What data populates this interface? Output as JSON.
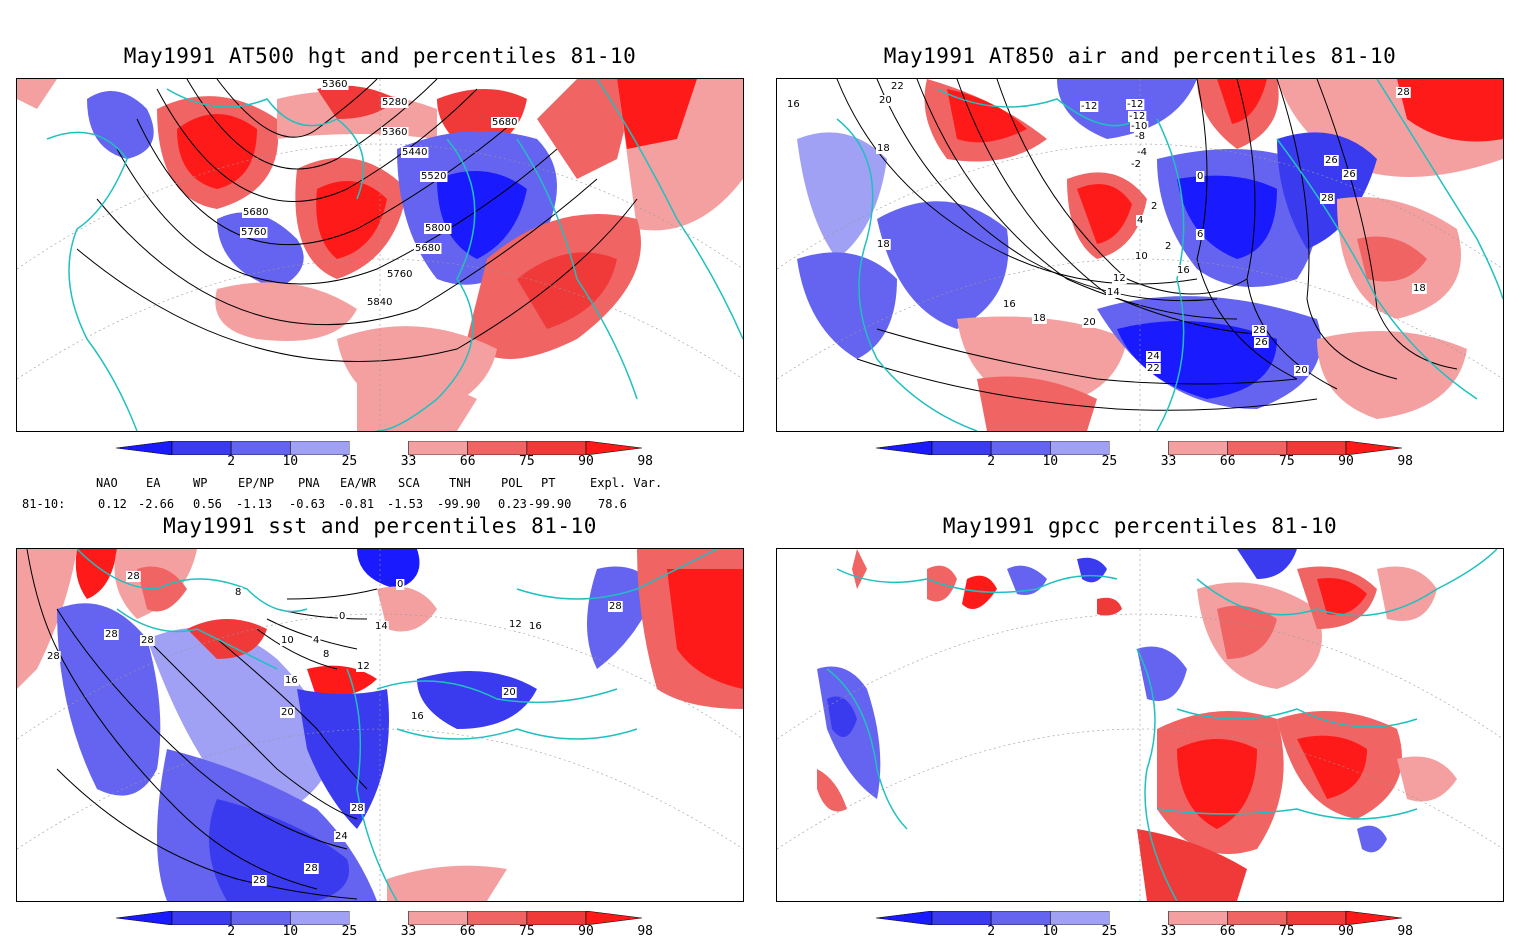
{
  "panels": [
    {
      "title": "May1991 AT500 hgt and percentiles 81-10",
      "field": "hgt500",
      "contour_labels": [
        "5360",
        "5280",
        "5680",
        "5360",
        "5440",
        "5520",
        "5680",
        "5760",
        "5800",
        "5680",
        "5760",
        "5840"
      ]
    },
    {
      "title": "May1991 AT850 air and percentiles 81-10",
      "field": "air850",
      "contour_labels": [
        "22",
        "20",
        "16",
        "-12",
        "-12",
        "-12",
        "-10",
        "-8",
        "-4",
        "-2",
        "0",
        "18",
        "26",
        "26",
        "28",
        "28",
        "2",
        "4",
        "6",
        "2",
        "10",
        "16",
        "12",
        "14",
        "16",
        "18",
        "20",
        "18",
        "28",
        "26",
        "24",
        "22",
        "20",
        "18"
      ]
    },
    {
      "title": "May1991 sst and percentiles 81-10",
      "field": "sst",
      "contour_labels": [
        "28",
        "28",
        "28",
        "28",
        "28",
        "8",
        "0",
        "0",
        "14",
        "10",
        "4",
        "8",
        "12",
        "16",
        "20",
        "12",
        "16",
        "20",
        "16",
        "24",
        "28",
        "28",
        "28"
      ]
    },
    {
      "title": "May1991 gpcc percentiles 81-10",
      "field": "gpcc",
      "contour_labels": []
    }
  ],
  "colorbar": {
    "labels": [
      "2",
      "10",
      "25",
      "33",
      "66",
      "75",
      "90",
      "98"
    ],
    "colors": [
      "#1a1aff",
      "#3a3aef",
      "#6464f0",
      "#a0a0f5",
      "#ffffff",
      "#f5a0a0",
      "#f06464",
      "#f03a3a",
      "#ff1a1a"
    ]
  },
  "teleconnections": {
    "headers": [
      "NAO",
      "EA",
      "WP",
      "EP/NP",
      "PNA",
      "EA/WR",
      "SCA",
      "TNH",
      "POL",
      "PT",
      "Expl. Var."
    ],
    "row_label": "81-10:",
    "values": [
      "0.12",
      "-2.66",
      "0.56",
      "-1.13",
      "-0.63",
      "-0.81",
      "-1.53",
      "-99.90",
      "0.23",
      "-99.90",
      "78.6"
    ]
  }
}
